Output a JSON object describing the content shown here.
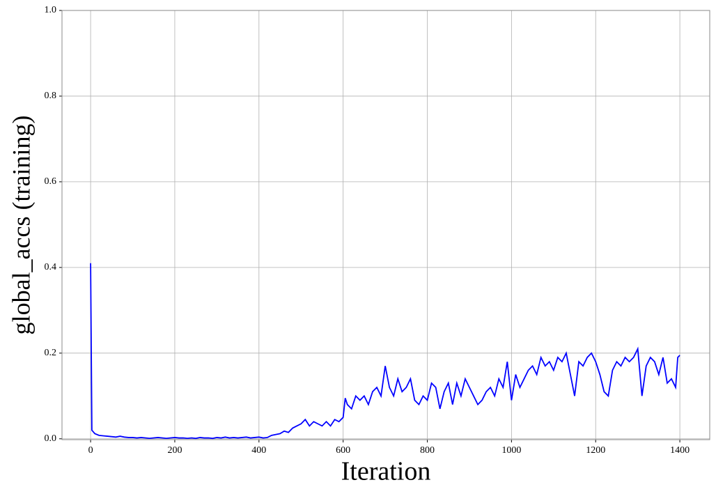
{
  "chart_data": {
    "type": "line",
    "xlabel": "Iteration",
    "ylabel": "global_accs (training)",
    "x": [
      0,
      3,
      10,
      20,
      30,
      40,
      50,
      60,
      70,
      80,
      90,
      100,
      110,
      120,
      130,
      140,
      150,
      160,
      170,
      180,
      190,
      200,
      210,
      220,
      230,
      240,
      250,
      260,
      270,
      280,
      290,
      300,
      310,
      320,
      330,
      340,
      350,
      360,
      370,
      380,
      390,
      400,
      410,
      420,
      430,
      440,
      450,
      460,
      470,
      480,
      490,
      500,
      510,
      520,
      530,
      540,
      550,
      560,
      570,
      580,
      590,
      600,
      605,
      610,
      620,
      630,
      640,
      650,
      660,
      670,
      680,
      690,
      700,
      710,
      720,
      730,
      740,
      750,
      760,
      770,
      780,
      790,
      800,
      810,
      820,
      830,
      840,
      850,
      860,
      870,
      880,
      890,
      900,
      910,
      920,
      930,
      940,
      950,
      960,
      970,
      980,
      990,
      1000,
      1010,
      1020,
      1030,
      1040,
      1050,
      1060,
      1070,
      1080,
      1090,
      1100,
      1110,
      1120,
      1130,
      1140,
      1150,
      1160,
      1170,
      1180,
      1190,
      1200,
      1210,
      1220,
      1230,
      1240,
      1250,
      1260,
      1270,
      1280,
      1290,
      1300,
      1310,
      1320,
      1330,
      1340,
      1350,
      1360,
      1370,
      1380,
      1390,
      1395,
      1400
    ],
    "series": [
      {
        "name": "global_accs",
        "color": "#0000ff",
        "values": [
          0.41,
          0.02,
          0.012,
          0.008,
          0.007,
          0.006,
          0.005,
          0.004,
          0.006,
          0.004,
          0.003,
          0.003,
          0.002,
          0.003,
          0.002,
          0.001,
          0.002,
          0.003,
          0.002,
          0.001,
          0.002,
          0.003,
          0.002,
          0.002,
          0.001,
          0.002,
          0.001,
          0.003,
          0.002,
          0.002,
          0.001,
          0.003,
          0.002,
          0.004,
          0.002,
          0.003,
          0.002,
          0.003,
          0.004,
          0.002,
          0.003,
          0.004,
          0.002,
          0.003,
          0.008,
          0.01,
          0.012,
          0.018,
          0.015,
          0.025,
          0.03,
          0.035,
          0.045,
          0.03,
          0.04,
          0.035,
          0.03,
          0.04,
          0.03,
          0.045,
          0.04,
          0.05,
          0.095,
          0.08,
          0.07,
          0.1,
          0.09,
          0.1,
          0.08,
          0.11,
          0.12,
          0.1,
          0.17,
          0.12,
          0.1,
          0.14,
          0.11,
          0.12,
          0.14,
          0.09,
          0.08,
          0.1,
          0.09,
          0.13,
          0.12,
          0.07,
          0.11,
          0.13,
          0.08,
          0.13,
          0.1,
          0.14,
          0.12,
          0.1,
          0.08,
          0.09,
          0.11,
          0.12,
          0.1,
          0.14,
          0.12,
          0.18,
          0.09,
          0.15,
          0.12,
          0.14,
          0.16,
          0.17,
          0.15,
          0.19,
          0.17,
          0.18,
          0.16,
          0.19,
          0.18,
          0.2,
          0.15,
          0.1,
          0.18,
          0.17,
          0.19,
          0.2,
          0.18,
          0.15,
          0.11,
          0.1,
          0.16,
          0.18,
          0.17,
          0.19,
          0.18,
          0.19,
          0.21,
          0.1,
          0.17,
          0.19,
          0.18,
          0.15,
          0.19,
          0.13,
          0.14,
          0.12,
          0.19,
          0.195
        ]
      }
    ],
    "xlim": [
      -68,
      1471
    ],
    "ylim": [
      -0.002,
      1.0
    ],
    "xticks": [
      0,
      200,
      400,
      600,
      800,
      1000,
      1200,
      1400
    ],
    "yticks": [
      {
        "value": 0,
        "label": "0.0"
      },
      0.2,
      0.4,
      0.6,
      0.8,
      {
        "value": 1,
        "label": "1.0"
      }
    ],
    "grid": true
  }
}
